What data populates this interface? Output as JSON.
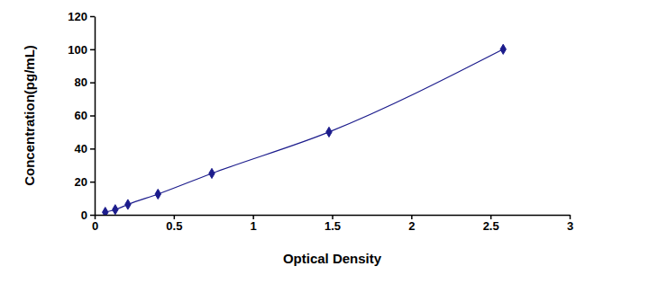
{
  "chart_data": {
    "type": "line",
    "x_label": "Optical Density",
    "y_label": "Concentration(pg/mL)",
    "x": [
      0.067,
      0.13,
      0.21,
      0.4,
      0.74,
      1.48,
      2.58
    ],
    "values": [
      1.56,
      3.12,
      6.25,
      12.5,
      25,
      50,
      100
    ],
    "color": "#1c1c8c",
    "marker": "diamond",
    "xlim": [
      0,
      3
    ],
    "xticks": [
      0,
      0.5,
      1,
      1.5,
      2,
      2.5,
      3
    ],
    "ylim": [
      0,
      120
    ],
    "yticks": [
      0,
      20,
      40,
      60,
      80,
      100,
      120
    ],
    "grid": false
  }
}
